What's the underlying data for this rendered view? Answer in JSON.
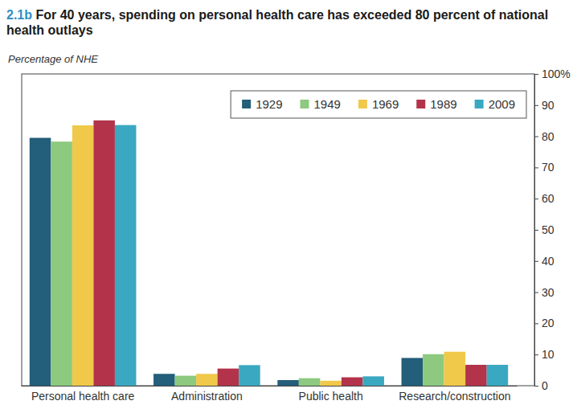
{
  "chart_data": {
    "type": "bar",
    "title": "2.1b For 40 years, spending on personal health care has exceeded 80 percent of national health outlays",
    "y_label": "Percentage of NHE",
    "categories": [
      "Personal health care",
      "Administration",
      "Public health",
      "Research/construction"
    ],
    "series": [
      {
        "name": "1929",
        "color": "#235e7a",
        "values": [
          79.5,
          3.8,
          1.8,
          8.9
        ]
      },
      {
        "name": "1949",
        "color": "#8dc97f",
        "values": [
          78.3,
          3.2,
          2.4,
          10.1
        ]
      },
      {
        "name": "1969",
        "color": "#f0c94a",
        "values": [
          83.5,
          3.8,
          1.6,
          10.9
        ]
      },
      {
        "name": "1989",
        "color": "#b3344a",
        "values": [
          85.1,
          5.5,
          2.7,
          6.7
        ]
      },
      {
        "name": "2009",
        "color": "#3aa8c1",
        "values": [
          83.6,
          6.6,
          3.0,
          6.7
        ]
      }
    ],
    "ylim": [
      0,
      100
    ],
    "yticks": [
      0,
      10,
      20,
      30,
      40,
      50,
      60,
      70,
      80,
      90,
      {
        "value": 100,
        "label": "100%"
      }
    ],
    "grid": false,
    "legend": "top-right"
  }
}
